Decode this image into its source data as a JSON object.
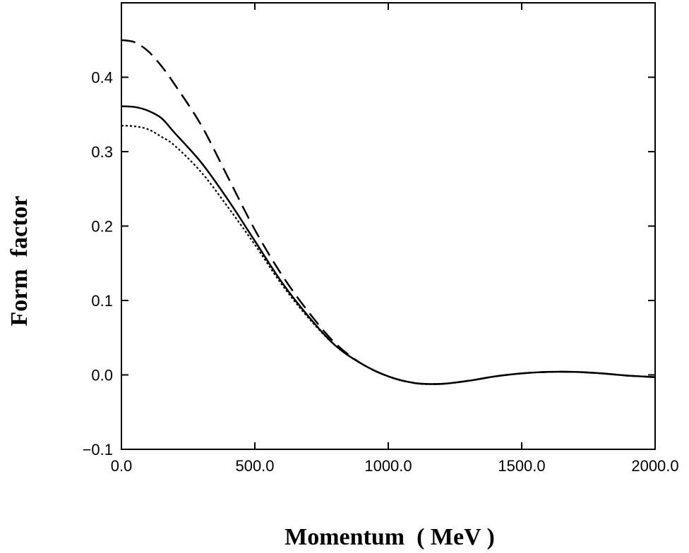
{
  "chart_data": {
    "type": "line",
    "title": "",
    "xlabel": "Momentum  ( MeV )",
    "ylabel": "Form  factor",
    "xlim": [
      0,
      2000
    ],
    "ylim": [
      -0.1,
      0.5
    ],
    "xticks": [
      0,
      500,
      1000,
      1500,
      2000
    ],
    "xtick_labels": [
      "0.0",
      "500.0",
      "1000.0",
      "1500.0",
      "2000.0"
    ],
    "yticks": [
      -0.1,
      0.0,
      0.1,
      0.2,
      0.3,
      0.4
    ],
    "ytick_labels": [
      "−0.1",
      "0.0",
      "0.1",
      "0.2",
      "0.3",
      "0.4"
    ],
    "grid": false,
    "legend": "none",
    "series": [
      {
        "style": "solid",
        "color": "#000000",
        "x": [
          0,
          50,
          100,
          150,
          200,
          300,
          400,
          500,
          600,
          700,
          800,
          900,
          1000,
          1100,
          1200,
          1300,
          1400,
          1500,
          1600,
          1700,
          1800,
          1900,
          2000
        ],
        "y": [
          0.361,
          0.36,
          0.355,
          0.345,
          0.325,
          0.285,
          0.235,
          0.18,
          0.125,
          0.079,
          0.04,
          0.015,
          -0.002,
          -0.011,
          -0.012,
          -0.008,
          -0.002,
          0.002,
          0.004,
          0.004,
          0.002,
          -0.001,
          -0.003
        ]
      },
      {
        "style": "dashed",
        "color": "#000000",
        "x": [
          0,
          50,
          100,
          150,
          200,
          300,
          400,
          500,
          600,
          700,
          800,
          900,
          1000,
          1100,
          1200,
          1300,
          1400,
          1500,
          1600,
          1700,
          1800,
          1900,
          2000
        ],
        "y": [
          0.45,
          0.447,
          0.435,
          0.415,
          0.39,
          0.335,
          0.265,
          0.195,
          0.135,
          0.085,
          0.043,
          0.015,
          -0.002,
          -0.011,
          -0.012,
          -0.008,
          -0.002,
          0.002,
          0.004,
          0.004,
          0.002,
          -0.001,
          -0.003
        ]
      },
      {
        "style": "dotted",
        "color": "#000000",
        "x": [
          0,
          50,
          100,
          150,
          200,
          300,
          400,
          500,
          600,
          700,
          800,
          900,
          1000,
          1100,
          1200,
          1300,
          1400,
          1500,
          1600,
          1700,
          1800,
          1900,
          2000
        ],
        "y": [
          0.335,
          0.334,
          0.33,
          0.32,
          0.308,
          0.272,
          0.225,
          0.175,
          0.122,
          0.077,
          0.04,
          0.015,
          -0.002,
          -0.011,
          -0.012,
          -0.008,
          -0.002,
          0.002,
          0.004,
          0.004,
          0.002,
          -0.001,
          -0.003
        ]
      }
    ]
  }
}
